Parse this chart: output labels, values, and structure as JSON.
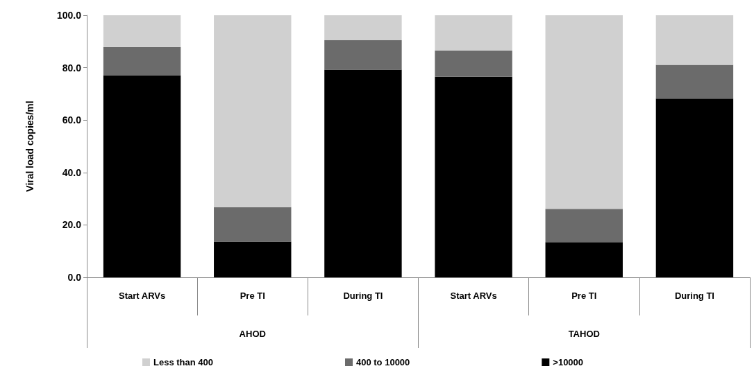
{
  "chart_data": {
    "type": "bar",
    "stacked": true,
    "ylabel": "Viral load copies/ml",
    "categories": [
      "Start ARVs",
      "Pre TI",
      "During TI",
      "Start ARVs",
      "Pre TI",
      "During TI"
    ],
    "annotations": [
      "AHOD",
      "TAHOD"
    ],
    "series": [
      {
        "name": ">10000",
        "color": "#000000",
        "values": [
          77.1,
          13.6,
          79.2,
          76.5,
          13.4,
          68.2
        ]
      },
      {
        "name": "400 to 10000",
        "color": "#6b6b6b",
        "values": [
          10.8,
          13.2,
          11.3,
          10.1,
          12.7,
          12.9
        ]
      },
      {
        "name": "Less than 400",
        "color": "#d0d0d0",
        "values": [
          12.1,
          73.2,
          9.5,
          13.4,
          73.9,
          18.9
        ]
      }
    ],
    "ylim": [
      0,
      100
    ],
    "yticks": [
      {
        "value": 0,
        "label": "0.0"
      },
      {
        "value": 20,
        "label": "20.0"
      },
      {
        "value": 40,
        "label": "40.0"
      },
      {
        "value": 60,
        "label": "60.0"
      },
      {
        "value": 80,
        "label": "80.0"
      },
      {
        "value": 100,
        "label": "100.0"
      }
    ],
    "grid": false,
    "legend": "bottom"
  }
}
